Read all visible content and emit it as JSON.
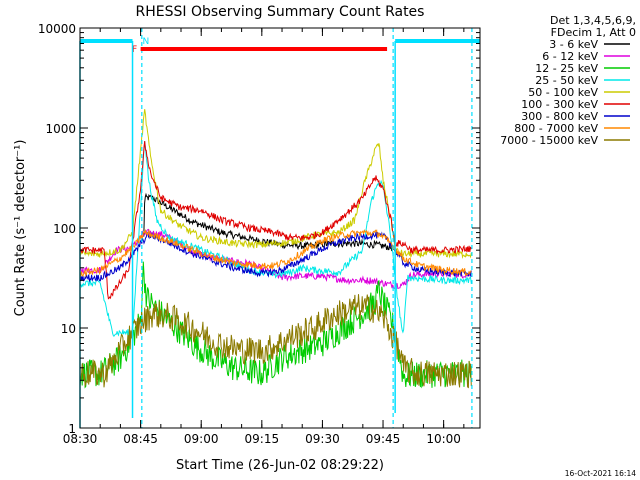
{
  "chart_data": {
    "type": "line",
    "title": "RHESSI Observing Summary Count Rates",
    "xlabel": "Start Time (26-Jun-02 08:29:22)",
    "ylabel": "Count Rate (s⁻¹ detector⁻¹)",
    "xlim_minutes": [
      0,
      99
    ],
    "ylim": [
      1,
      10000
    ],
    "yscale": "log",
    "x_ticks": [
      {
        "label": "08:30",
        "minute": 0
      },
      {
        "label": "08:45",
        "minute": 15
      },
      {
        "label": "09:00",
        "minute": 30
      },
      {
        "label": "09:15",
        "minute": 45
      },
      {
        "label": "09:30",
        "minute": 60
      },
      {
        "label": "09:45",
        "minute": 75
      },
      {
        "label": "10:00",
        "minute": 90
      }
    ],
    "y_ticks": [
      {
        "label": "1",
        "value": 1
      },
      {
        "label": "10",
        "value": 10
      },
      {
        "label": "100",
        "value": 100
      },
      {
        "label": "1000",
        "value": 1000
      },
      {
        "label": "10000",
        "value": 10000
      }
    ],
    "legend_header": [
      "Det 1,3,4,5,6,9,",
      "FDecim 1, Att 0"
    ],
    "series": [
      {
        "name": "3 - 6 keV",
        "color": "#000000",
        "points": [
          [
            15.8,
            80
          ],
          [
            16,
            200
          ],
          [
            18,
            200
          ],
          [
            22,
            160
          ],
          [
            28,
            115
          ],
          [
            35,
            90
          ],
          [
            42,
            78
          ],
          [
            50,
            68
          ],
          [
            57,
            66
          ],
          [
            62,
            70
          ],
          [
            68,
            70
          ],
          [
            73,
            68
          ],
          [
            76,
            65
          ],
          [
            78,
            62
          ]
        ]
      },
      {
        "name": "6 - 12 keV",
        "color": "#dd00dd",
        "points": [
          [
            0,
            38
          ],
          [
            5,
            38
          ],
          [
            9,
            60
          ],
          [
            13,
            64
          ],
          [
            15.5,
            85
          ],
          [
            17,
            90
          ],
          [
            21,
            85
          ],
          [
            28,
            58
          ],
          [
            35,
            48
          ],
          [
            42,
            44
          ],
          [
            50,
            32
          ],
          [
            54,
            33
          ],
          [
            60,
            33
          ],
          [
            66,
            30
          ],
          [
            72,
            30
          ],
          [
            77,
            27
          ],
          [
            80,
            27
          ],
          [
            82,
            34
          ],
          [
            90,
            35
          ],
          [
            97,
            34
          ]
        ]
      },
      {
        "name": "12 - 25 keV",
        "color": "#00cc00",
        "points": [
          [
            0,
            3.5
          ],
          [
            5,
            3.5
          ],
          [
            10,
            5
          ],
          [
            13,
            8
          ],
          [
            15,
            12
          ],
          [
            15.7,
            40
          ],
          [
            16.5,
            20
          ],
          [
            20,
            14
          ],
          [
            24,
            10
          ],
          [
            28,
            7
          ],
          [
            33,
            5
          ],
          [
            38,
            4
          ],
          [
            45,
            3.5
          ],
          [
            50,
            5
          ],
          [
            55,
            6
          ],
          [
            60,
            7
          ],
          [
            65,
            10
          ],
          [
            70,
            14
          ],
          [
            73,
            18
          ],
          [
            74,
            24
          ],
          [
            75,
            18
          ],
          [
            77,
            12
          ],
          [
            78,
            9
          ],
          [
            80,
            3.3
          ],
          [
            88,
            3.5
          ],
          [
            97,
            3.5
          ]
        ]
      },
      {
        "name": "25 - 50 keV",
        "color": "#00e8e8",
        "points": [
          [
            0,
            28
          ],
          [
            5,
            28
          ],
          [
            8,
            9
          ],
          [
            13,
            9
          ],
          [
            15,
            160
          ],
          [
            16,
            800
          ],
          [
            17,
            300
          ],
          [
            19,
            120
          ],
          [
            22,
            80
          ],
          [
            26,
            70
          ],
          [
            30,
            60
          ],
          [
            35,
            50
          ],
          [
            42,
            38
          ],
          [
            48,
            34
          ],
          [
            52,
            36
          ],
          [
            55,
            40
          ],
          [
            58,
            38
          ],
          [
            64,
            36
          ],
          [
            70,
            60
          ],
          [
            72,
            180
          ],
          [
            74,
            300
          ],
          [
            75,
            260
          ],
          [
            77,
            80
          ],
          [
            78,
            30
          ],
          [
            80,
            8
          ],
          [
            81,
            32
          ],
          [
            90,
            30
          ],
          [
            97,
            30
          ]
        ]
      },
      {
        "name": "50 - 100 keV",
        "color": "#cccc00",
        "points": [
          [
            0,
            55
          ],
          [
            5,
            55
          ],
          [
            10,
            60
          ],
          [
            13,
            90
          ],
          [
            15,
            600
          ],
          [
            16,
            1500
          ],
          [
            17.5,
            500
          ],
          [
            20,
            150
          ],
          [
            24,
            110
          ],
          [
            30,
            80
          ],
          [
            38,
            70
          ],
          [
            45,
            68
          ],
          [
            52,
            72
          ],
          [
            58,
            85
          ],
          [
            64,
            90
          ],
          [
            68,
            120
          ],
          [
            70,
            250
          ],
          [
            73,
            600
          ],
          [
            74,
            700
          ],
          [
            75,
            300
          ],
          [
            77,
            120
          ],
          [
            78,
            60
          ],
          [
            80,
            55
          ],
          [
            90,
            55
          ],
          [
            97,
            55
          ]
        ]
      },
      {
        "name": "100 - 300 keV",
        "color": "#e00000",
        "points": [
          [
            0,
            60
          ],
          [
            6,
            60
          ],
          [
            7,
            20
          ],
          [
            9,
            25
          ],
          [
            12,
            38
          ],
          [
            15,
            250
          ],
          [
            16,
            700
          ],
          [
            17.5,
            350
          ],
          [
            20,
            200
          ],
          [
            25,
            160
          ],
          [
            30,
            150
          ],
          [
            35,
            120
          ],
          [
            42,
            100
          ],
          [
            48,
            90
          ],
          [
            52,
            80
          ],
          [
            56,
            80
          ],
          [
            60,
            90
          ],
          [
            66,
            140
          ],
          [
            70,
            200
          ],
          [
            73,
            320
          ],
          [
            75,
            250
          ],
          [
            77,
            120
          ],
          [
            78,
            70
          ],
          [
            80,
            70
          ],
          [
            82,
            60
          ],
          [
            90,
            60
          ],
          [
            97,
            62
          ]
        ]
      },
      {
        "name": "300 - 800 keV",
        "color": "#0000cc",
        "points": [
          [
            0,
            32
          ],
          [
            5,
            32
          ],
          [
            10,
            40
          ],
          [
            14,
            60
          ],
          [
            15,
            70
          ],
          [
            17,
            85
          ],
          [
            20,
            78
          ],
          [
            26,
            60
          ],
          [
            32,
            48
          ],
          [
            38,
            40
          ],
          [
            45,
            35
          ],
          [
            50,
            38
          ],
          [
            55,
            48
          ],
          [
            60,
            62
          ],
          [
            65,
            75
          ],
          [
            68,
            80
          ],
          [
            73,
            85
          ],
          [
            76,
            80
          ],
          [
            78,
            60
          ],
          [
            80,
            45
          ],
          [
            84,
            38
          ],
          [
            90,
            36
          ],
          [
            97,
            35
          ]
        ]
      },
      {
        "name": "800 - 7000 keV",
        "color": "#ff8800",
        "points": [
          [
            0,
            35
          ],
          [
            5,
            38
          ],
          [
            10,
            50
          ],
          [
            14,
            70
          ],
          [
            16,
            90
          ],
          [
            20,
            80
          ],
          [
            26,
            65
          ],
          [
            32,
            52
          ],
          [
            38,
            45
          ],
          [
            44,
            42
          ],
          [
            48,
            42
          ],
          [
            52,
            48
          ],
          [
            56,
            60
          ],
          [
            60,
            75
          ],
          [
            65,
            85
          ],
          [
            70,
            90
          ],
          [
            74,
            88
          ],
          [
            77,
            70
          ],
          [
            80,
            50
          ],
          [
            84,
            42
          ],
          [
            90,
            38
          ],
          [
            97,
            36
          ]
        ]
      },
      {
        "name": "7000 - 15000 keV",
        "color": "#8b7a00",
        "points": [
          [
            0,
            3.5
          ],
          [
            6,
            3.5
          ],
          [
            8,
            4.5
          ],
          [
            10,
            6
          ],
          [
            12,
            8
          ],
          [
            15,
            11
          ],
          [
            18,
            14
          ],
          [
            22,
            13
          ],
          [
            28,
            10
          ],
          [
            34,
            7
          ],
          [
            40,
            6
          ],
          [
            46,
            6
          ],
          [
            52,
            8
          ],
          [
            58,
            10
          ],
          [
            62,
            13
          ],
          [
            68,
            16
          ],
          [
            72,
            16
          ],
          [
            75,
            13
          ],
          [
            77,
            9
          ],
          [
            79,
            6
          ],
          [
            80,
            4
          ],
          [
            83,
            3.5
          ],
          [
            90,
            3.5
          ],
          [
            97,
            3.5
          ]
        ]
      }
    ],
    "flag_bars": [
      {
        "label": "",
        "color": "#00e0ff",
        "from_minute": 0,
        "to_minute": 13,
        "level": "top"
      },
      {
        "label": "",
        "color": "#00e0ff",
        "from_minute": 78,
        "to_minute": 99,
        "level": "top"
      },
      {
        "label": "F",
        "color": "#ff0000",
        "from_minute": 15,
        "to_minute": 76,
        "level": "upper"
      },
      {
        "label": "N",
        "color": "#00e0ff",
        "from_minute": 15.3,
        "to_minute": 15.3,
        "level": "top"
      }
    ],
    "vertical_markers": [
      {
        "color": "#00e0ff",
        "style": "dashed",
        "minute": 15.3
      },
      {
        "color": "#00e0ff",
        "style": "dashed",
        "minute": 77.5
      },
      {
        "color": "#00e0ff",
        "style": "dashed",
        "minute": 97
      }
    ]
  },
  "footer": {
    "timestamp": "16-Oct-2021 16:14"
  }
}
